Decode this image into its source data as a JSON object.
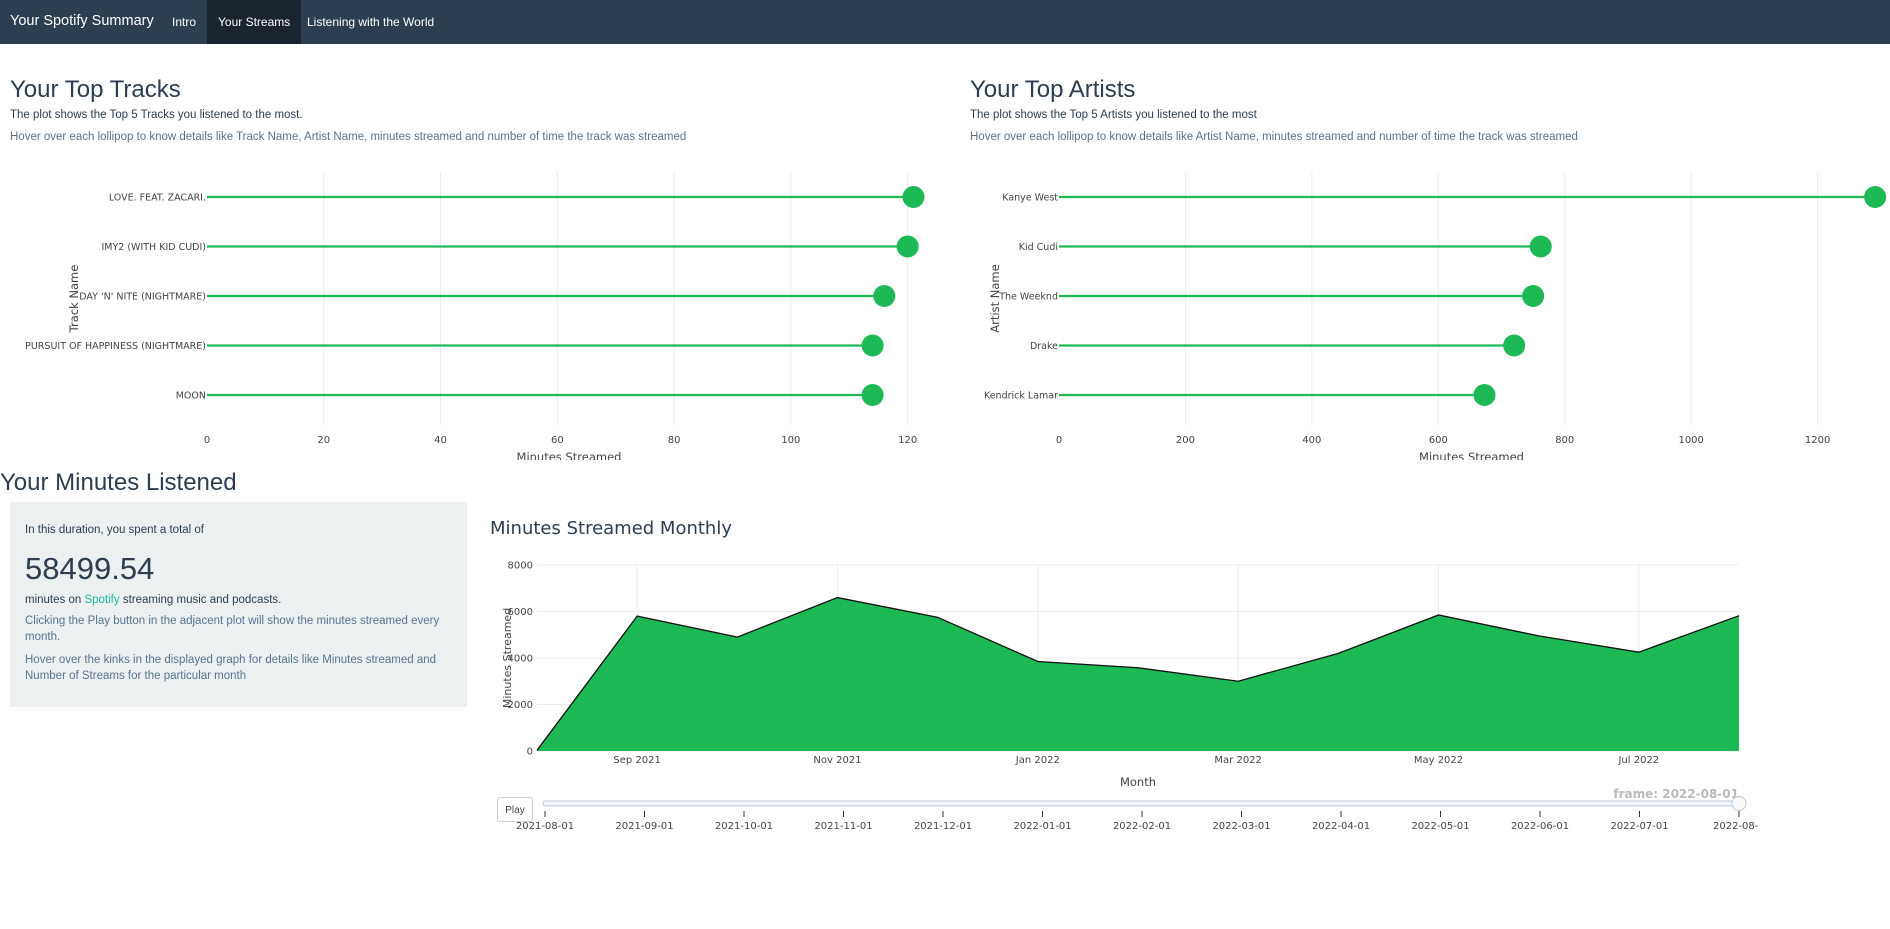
{
  "nav": {
    "brand": "Your Spotify Summary",
    "tabs": [
      {
        "label": "Intro"
      },
      {
        "label": "Your Streams"
      },
      {
        "label": "Listening with the World"
      }
    ]
  },
  "top_tracks": {
    "heading": "Your Top Tracks",
    "desc": "The plot shows the Top 5 Tracks you listened to the most.",
    "hint": "Hover over each lollipop to know details like Track Name, Artist Name, minutes streamed and number of time the track was streamed"
  },
  "top_artists": {
    "heading": "Your Top Artists",
    "desc": "The plot shows the Top 5 Artists you listened to the most",
    "hint": "Hover over each lollipop to know details like Artist Name, minutes streamed and number of time the track was streamed"
  },
  "minutes": {
    "heading": "Your Minutes Listened",
    "intro": "In this duration, you spent a total of",
    "total": "58499.54",
    "mins_prefix": "minutes on ",
    "spotify_link": "Spotify",
    "mins_suffix": " streaming music and podcasts.",
    "play_hint": "Clicking the Play button in the adjacent plot will show the minutes streamed every month.",
    "hover_hint": "Hover over the kinks in the displayed graph for details like Minutes streamed and Number of Streams for the particular month"
  },
  "player": {
    "play_label": "Play",
    "frame_label": "frame: 2022-08-01"
  },
  "colors": {
    "spotify_green": "#1db954",
    "navbar": "#2c3e50",
    "navbar_active": "#1a242f"
  },
  "chart_data": [
    {
      "type": "lollipop",
      "title": "",
      "xlabel": "Minutes Streamed",
      "ylabel": "Track Name",
      "categories": [
        "LOVE. FEAT. ZACARI.",
        "IMY2 (WITH KID CUDI)",
        "DAY 'N' NITE (NIGHTMARE)",
        "PURSUIT OF HAPPINESS (NIGHTMARE)",
        "MOON"
      ],
      "values": [
        121,
        120,
        116,
        114,
        114
      ],
      "xlim": [
        0,
        124
      ],
      "xticks": [
        0,
        20,
        40,
        60,
        80,
        100,
        120
      ],
      "grid": true
    },
    {
      "type": "lollipop",
      "title": "",
      "xlabel": "Minutes Streamed",
      "ylabel": "Artist Name",
      "categories": [
        "Kanye West",
        "Kid Cudi",
        "The Weeknd",
        "Drake",
        "Kendrick Lamar"
      ],
      "values": [
        1291,
        762,
        750,
        720,
        673
      ],
      "xlim": [
        0,
        1305
      ],
      "xticks": [
        0,
        200,
        400,
        600,
        800,
        1000,
        1200
      ],
      "grid": true
    },
    {
      "type": "area",
      "title": "Minutes Streamed Monthly",
      "xlabel": "Month",
      "ylabel": "Minutes Streamed",
      "x": [
        "2021-08-01",
        "2021-09-01",
        "2021-10-01",
        "2021-11-01",
        "2021-12-01",
        "2022-01-01",
        "2022-02-01",
        "2022-03-01",
        "2022-04-01",
        "2022-05-01",
        "2022-06-01",
        "2022-07-01",
        "2022-08-01"
      ],
      "values": [
        30,
        5800,
        4900,
        6600,
        5750,
        3850,
        3580,
        3000,
        4200,
        5850,
        4950,
        4250,
        5820
      ],
      "ylim": [
        0,
        8000
      ],
      "yticks": [
        0,
        2000,
        4000,
        6000,
        8000
      ],
      "xtick_labels": [
        "Sep 2021",
        "Nov 2021",
        "Jan 2022",
        "Mar 2022",
        "May 2022",
        "Jul 2022"
      ],
      "slider_labels": [
        "2021-08-01",
        "2021-09-01",
        "2021-10-01",
        "2021-11-01",
        "2021-12-01",
        "2022-01-01",
        "2022-02-01",
        "2022-03-01",
        "2022-04-01",
        "2022-05-01",
        "2022-06-01",
        "2022-07-01",
        "2022-08-"
      ],
      "grid": true
    }
  ]
}
